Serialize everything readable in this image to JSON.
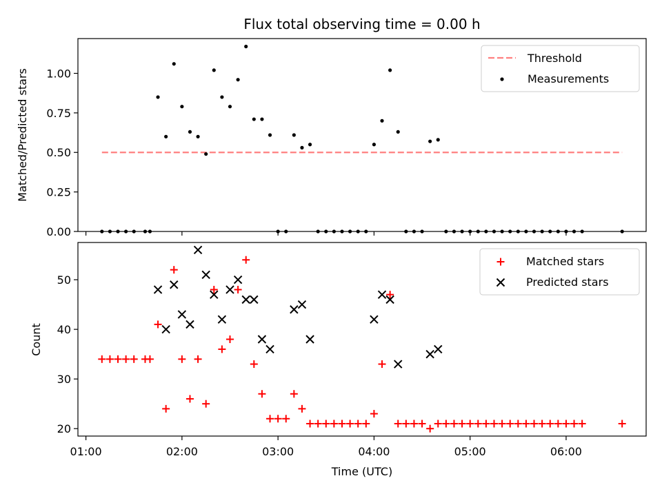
{
  "chart_data": [
    {
      "type": "scatter",
      "title": "Flux total observing time = 0.00 h",
      "ylabel": "Matched/Predicted stars",
      "xlabel": "",
      "ylim": [
        0,
        1.22
      ],
      "yticks": [
        0.0,
        0.25,
        0.5,
        0.75,
        1.0
      ],
      "ytick_labels": [
        "0.00",
        "0.25",
        "0.50",
        "0.75",
        "1.00"
      ],
      "legend": [
        "Threshold",
        "Measurements"
      ],
      "legend_position": "top-right",
      "threshold": {
        "name": "Threshold",
        "value": 0.5,
        "x_range": [
          "01:10",
          "06:35"
        ],
        "color": "#ff7f7f",
        "style": "dashed"
      },
      "series": [
        {
          "name": "Measurements",
          "marker": "dot",
          "color": "#000000",
          "points": [
            [
              "01:10",
              0.0
            ],
            [
              "01:15",
              0.0
            ],
            [
              "01:20",
              0.0
            ],
            [
              "01:25",
              0.0
            ],
            [
              "01:30",
              0.0
            ],
            [
              "01:37",
              0.0
            ],
            [
              "01:40",
              0.0
            ],
            [
              "01:45",
              0.85
            ],
            [
              "01:50",
              0.6
            ],
            [
              "01:55",
              1.06
            ],
            [
              "02:00",
              0.79
            ],
            [
              "02:05",
              0.63
            ],
            [
              "02:10",
              0.6
            ],
            [
              "02:15",
              0.49
            ],
            [
              "02:20",
              1.02
            ],
            [
              "02:25",
              0.85
            ],
            [
              "02:30",
              0.79
            ],
            [
              "02:35",
              0.96
            ],
            [
              "02:40",
              1.17
            ],
            [
              "02:45",
              0.71
            ],
            [
              "02:50",
              0.71
            ],
            [
              "02:55",
              0.61
            ],
            [
              "03:00",
              0.0
            ],
            [
              "03:05",
              0.0
            ],
            [
              "03:10",
              0.61
            ],
            [
              "03:15",
              0.53
            ],
            [
              "03:20",
              0.55
            ],
            [
              "03:25",
              0.0
            ],
            [
              "03:30",
              0.0
            ],
            [
              "03:35",
              0.0
            ],
            [
              "03:40",
              0.0
            ],
            [
              "03:45",
              0.0
            ],
            [
              "03:50",
              0.0
            ],
            [
              "03:55",
              0.0
            ],
            [
              "04:00",
              0.55
            ],
            [
              "04:05",
              0.7
            ],
            [
              "04:10",
              1.02
            ],
            [
              "04:15",
              0.63
            ],
            [
              "04:20",
              0.0
            ],
            [
              "04:25",
              0.0
            ],
            [
              "04:30",
              0.0
            ],
            [
              "04:35",
              0.57
            ],
            [
              "04:40",
              0.58
            ],
            [
              "04:45",
              0.0
            ],
            [
              "04:50",
              0.0
            ],
            [
              "04:55",
              0.0
            ],
            [
              "05:00",
              0.0
            ],
            [
              "05:05",
              0.0
            ],
            [
              "05:10",
              0.0
            ],
            [
              "05:15",
              0.0
            ],
            [
              "05:20",
              0.0
            ],
            [
              "05:25",
              0.0
            ],
            [
              "05:30",
              0.0
            ],
            [
              "05:35",
              0.0
            ],
            [
              "05:40",
              0.0
            ],
            [
              "05:45",
              0.0
            ],
            [
              "05:50",
              0.0
            ],
            [
              "05:55",
              0.0
            ],
            [
              "06:00",
              0.0
            ],
            [
              "06:05",
              0.0
            ],
            [
              "06:10",
              0.0
            ],
            [
              "06:35",
              0.0
            ]
          ]
        }
      ]
    },
    {
      "type": "scatter",
      "title": "",
      "ylabel": "Count",
      "xlabel": "Time (UTC)",
      "xlim": [
        "00:55",
        "06:50"
      ],
      "xticks": [
        "01:00",
        "02:00",
        "03:00",
        "04:00",
        "05:00",
        "06:00"
      ],
      "ylim": [
        18.5,
        57.5
      ],
      "yticks": [
        20,
        30,
        40,
        50
      ],
      "legend": [
        "Matched stars",
        "Predicted stars"
      ],
      "legend_position": "top-right",
      "series": [
        {
          "name": "Matched stars",
          "marker": "plus",
          "color": "#ff0000",
          "points": [
            [
              "01:10",
              34
            ],
            [
              "01:15",
              34
            ],
            [
              "01:20",
              34
            ],
            [
              "01:25",
              34
            ],
            [
              "01:30",
              34
            ],
            [
              "01:37",
              34
            ],
            [
              "01:40",
              34
            ],
            [
              "01:45",
              41
            ],
            [
              "01:50",
              24
            ],
            [
              "01:55",
              52
            ],
            [
              "02:00",
              34
            ],
            [
              "02:05",
              26
            ],
            [
              "02:10",
              34
            ],
            [
              "02:15",
              25
            ],
            [
              "02:20",
              48
            ],
            [
              "02:25",
              36
            ],
            [
              "02:30",
              38
            ],
            [
              "02:35",
              48
            ],
            [
              "02:40",
              54
            ],
            [
              "02:45",
              33
            ],
            [
              "02:50",
              27
            ],
            [
              "02:55",
              22
            ],
            [
              "03:00",
              22
            ],
            [
              "03:05",
              22
            ],
            [
              "03:10",
              27
            ],
            [
              "03:15",
              24
            ],
            [
              "03:20",
              21
            ],
            [
              "03:25",
              21
            ],
            [
              "03:30",
              21
            ],
            [
              "03:35",
              21
            ],
            [
              "03:40",
              21
            ],
            [
              "03:45",
              21
            ],
            [
              "03:50",
              21
            ],
            [
              "03:55",
              21
            ],
            [
              "04:00",
              23
            ],
            [
              "04:05",
              33
            ],
            [
              "04:10",
              47
            ],
            [
              "04:15",
              21
            ],
            [
              "04:20",
              21
            ],
            [
              "04:25",
              21
            ],
            [
              "04:30",
              21
            ],
            [
              "04:35",
              20
            ],
            [
              "04:40",
              21
            ],
            [
              "04:45",
              21
            ],
            [
              "04:50",
              21
            ],
            [
              "04:55",
              21
            ],
            [
              "05:00",
              21
            ],
            [
              "05:05",
              21
            ],
            [
              "05:10",
              21
            ],
            [
              "05:15",
              21
            ],
            [
              "05:20",
              21
            ],
            [
              "05:25",
              21
            ],
            [
              "05:30",
              21
            ],
            [
              "05:35",
              21
            ],
            [
              "05:40",
              21
            ],
            [
              "05:45",
              21
            ],
            [
              "05:50",
              21
            ],
            [
              "05:55",
              21
            ],
            [
              "06:00",
              21
            ],
            [
              "06:05",
              21
            ],
            [
              "06:10",
              21
            ],
            [
              "06:35",
              21
            ]
          ]
        },
        {
          "name": "Predicted stars",
          "marker": "x",
          "color": "#000000",
          "points": [
            [
              "01:45",
              48
            ],
            [
              "01:50",
              40
            ],
            [
              "01:55",
              49
            ],
            [
              "02:00",
              43
            ],
            [
              "02:05",
              41
            ],
            [
              "02:10",
              56
            ],
            [
              "02:15",
              51
            ],
            [
              "02:20",
              47
            ],
            [
              "02:25",
              42
            ],
            [
              "02:30",
              48
            ],
            [
              "02:35",
              50
            ],
            [
              "02:40",
              46
            ],
            [
              "02:45",
              46
            ],
            [
              "02:50",
              38
            ],
            [
              "02:55",
              36
            ],
            [
              "03:10",
              44
            ],
            [
              "03:15",
              45
            ],
            [
              "03:20",
              38
            ],
            [
              "04:00",
              42
            ],
            [
              "04:05",
              47
            ],
            [
              "04:10",
              46
            ],
            [
              "04:15",
              33
            ],
            [
              "04:35",
              35
            ],
            [
              "04:40",
              36
            ]
          ]
        }
      ]
    }
  ]
}
